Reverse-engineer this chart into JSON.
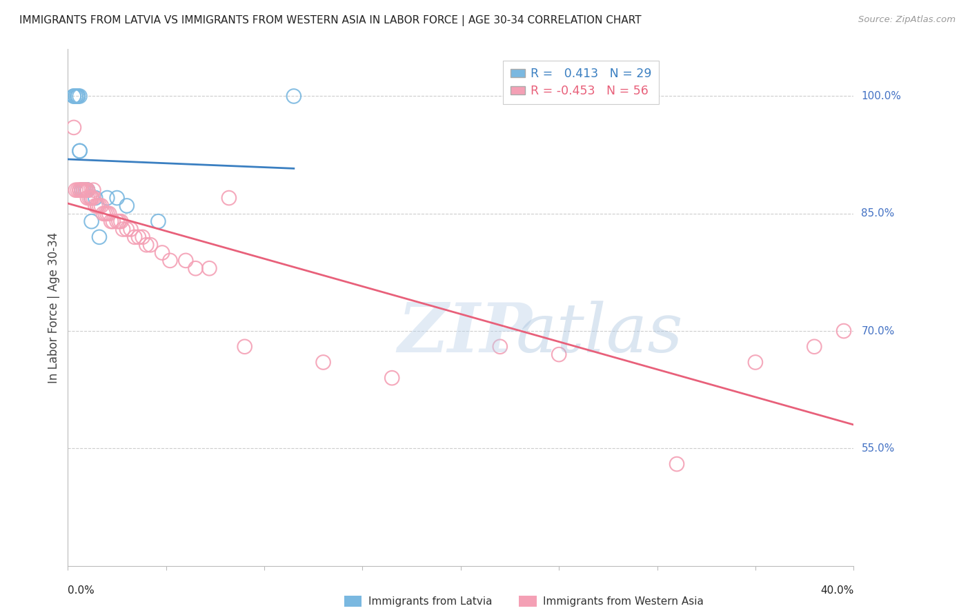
{
  "title": "IMMIGRANTS FROM LATVIA VS IMMIGRANTS FROM WESTERN ASIA IN LABOR FORCE | AGE 30-34 CORRELATION CHART",
  "source": "Source: ZipAtlas.com",
  "ylabel": "In Labor Force | Age 30-34",
  "right_ytick_labels": [
    "100.0%",
    "85.0%",
    "70.0%",
    "55.0%"
  ],
  "right_ytick_values": [
    1.0,
    0.85,
    0.7,
    0.55
  ],
  "xlim": [
    0.0,
    0.4
  ],
  "ylim": [
    0.4,
    1.06
  ],
  "blue_R": 0.413,
  "blue_N": 29,
  "pink_R": -0.453,
  "pink_N": 56,
  "legend_label_blue": "Immigrants from Latvia",
  "legend_label_pink": "Immigrants from Western Asia",
  "bg_color": "#ffffff",
  "blue_color": "#7ab8e0",
  "pink_color": "#f4a0b5",
  "blue_line_color": "#3a7fc1",
  "pink_line_color": "#e8607a",
  "grid_color": "#cccccc",
  "title_color": "#222222",
  "right_axis_color": "#4472c4",
  "blue_scatter_x": [
    0.003,
    0.003,
    0.004,
    0.004,
    0.005,
    0.005,
    0.005,
    0.005,
    0.006,
    0.006,
    0.006,
    0.007,
    0.007,
    0.008,
    0.008,
    0.009,
    0.009,
    0.01,
    0.01,
    0.01,
    0.012,
    0.012,
    0.014,
    0.016,
    0.02,
    0.025,
    0.03,
    0.046,
    0.115
  ],
  "blue_scatter_y": [
    1.0,
    1.0,
    1.0,
    1.0,
    1.0,
    1.0,
    1.0,
    1.0,
    1.0,
    0.93,
    0.93,
    0.88,
    0.88,
    0.88,
    0.88,
    0.88,
    0.88,
    0.88,
    0.88,
    0.88,
    0.87,
    0.84,
    0.87,
    0.82,
    0.87,
    0.87,
    0.86,
    0.84,
    1.0
  ],
  "pink_scatter_x": [
    0.003,
    0.004,
    0.005,
    0.006,
    0.006,
    0.007,
    0.007,
    0.008,
    0.008,
    0.009,
    0.009,
    0.01,
    0.01,
    0.01,
    0.011,
    0.012,
    0.012,
    0.013,
    0.013,
    0.014,
    0.015,
    0.015,
    0.016,
    0.017,
    0.018,
    0.019,
    0.02,
    0.021,
    0.022,
    0.023,
    0.025,
    0.026,
    0.027,
    0.028,
    0.03,
    0.032,
    0.034,
    0.036,
    0.038,
    0.04,
    0.042,
    0.048,
    0.052,
    0.06,
    0.065,
    0.072,
    0.082,
    0.09,
    0.13,
    0.165,
    0.22,
    0.25,
    0.31,
    0.35,
    0.38,
    0.395
  ],
  "pink_scatter_y": [
    0.96,
    0.88,
    0.88,
    0.88,
    0.88,
    0.88,
    0.88,
    0.88,
    0.88,
    0.88,
    0.88,
    0.88,
    0.88,
    0.87,
    0.87,
    0.87,
    0.87,
    0.88,
    0.87,
    0.86,
    0.86,
    0.86,
    0.86,
    0.86,
    0.85,
    0.85,
    0.85,
    0.85,
    0.84,
    0.84,
    0.84,
    0.84,
    0.84,
    0.83,
    0.83,
    0.83,
    0.82,
    0.82,
    0.82,
    0.81,
    0.81,
    0.8,
    0.79,
    0.79,
    0.78,
    0.78,
    0.87,
    0.68,
    0.66,
    0.64,
    0.68,
    0.67,
    0.53,
    0.66,
    0.68,
    0.7
  ],
  "watermark_zip": "ZIP",
  "watermark_atlas": "atlas"
}
